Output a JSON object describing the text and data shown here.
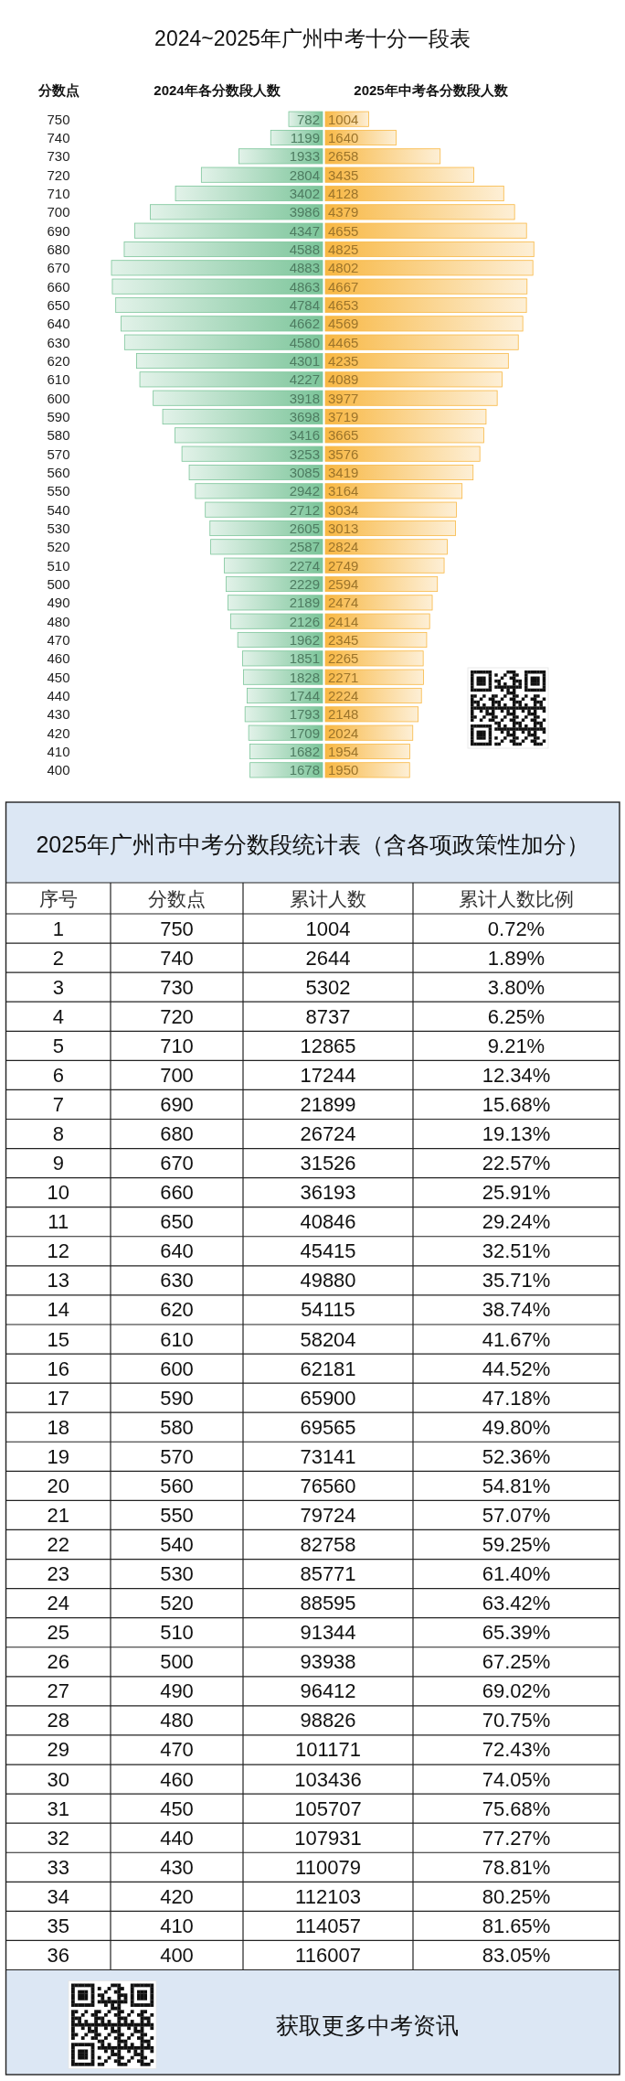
{
  "chart_data": [
    {
      "type": "bar",
      "orientation": "horizontal",
      "title": "2024~2025年广州中考十分一段表",
      "ylabel": "分数点",
      "data_labels": true,
      "categories": [
        "750",
        "740",
        "730",
        "720",
        "710",
        "700",
        "690",
        "680",
        "670",
        "660",
        "650",
        "640",
        "630",
        "620",
        "610",
        "600",
        "590",
        "580",
        "570",
        "560",
        "550",
        "540",
        "530",
        "520",
        "510",
        "500",
        "490",
        "480",
        "470",
        "460",
        "450",
        "440",
        "430",
        "420",
        "410",
        "400"
      ],
      "series": [
        {
          "name": "2024年各分数段人数",
          "color": "#7cc59a",
          "values": [
            782,
            1199,
            1933,
            2804,
            3402,
            3986,
            4347,
            4588,
            4883,
            4863,
            4784,
            4662,
            4580,
            4301,
            4227,
            3918,
            3698,
            3416,
            3253,
            3085,
            2942,
            2712,
            2605,
            2587,
            2274,
            2229,
            2189,
            2126,
            1962,
            1851,
            1828,
            1744,
            1793,
            1709,
            1682,
            1678
          ]
        }
      ]
    },
    {
      "type": "bar",
      "orientation": "horizontal",
      "data_labels": true,
      "categories": [
        null,
        null,
        null,
        null,
        null,
        null,
        null,
        null,
        null,
        null,
        null,
        null,
        null,
        null,
        null,
        null,
        null,
        null,
        null,
        null,
        null,
        null,
        null,
        null,
        null,
        null,
        null,
        null,
        null,
        null,
        null,
        null,
        null,
        null,
        null,
        null
      ],
      "series": [
        {
          "name": "2025年中考各分数段人数",
          "color": "#f8b844",
          "values": [
            1004,
            1640,
            2658,
            3435,
            4128,
            4379,
            4655,
            4825,
            4802,
            4667,
            4653,
            4569,
            4465,
            4235,
            4089,
            3977,
            3719,
            3665,
            3576,
            3419,
            3164,
            3034,
            3013,
            2824,
            2749,
            2594,
            2474,
            2414,
            2345,
            2265,
            2271,
            2224,
            2148,
            2024,
            1954,
            1950
          ]
        }
      ]
    },
    {
      "type": "heatmap",
      "title": "2025年广州市中考分数段统计表（含各项政策性加分）",
      "ylabel": "序号",
      "categories": [
        "分数点",
        "累计人数",
        "累计人数比例"
      ],
      "y_categories": [
        "1",
        "2",
        "3",
        "4",
        "5",
        "6",
        "7",
        "8",
        "9",
        "10",
        "11",
        "12",
        "13",
        "14",
        "15",
        "16",
        "17",
        "18",
        "19",
        "20",
        "21",
        "22",
        "23",
        "24",
        "25",
        "26",
        "27",
        "28",
        "29",
        "30",
        "31",
        "32",
        "33",
        "34",
        "35",
        "36"
      ],
      "cells": [
        [
          null,
          null,
          null
        ],
        [
          null,
          null,
          null
        ],
        [
          null,
          null,
          null
        ],
        [
          null,
          null,
          null
        ],
        [
          null,
          null,
          null
        ],
        [
          null,
          null,
          null
        ],
        [
          null,
          null,
          null
        ],
        [
          null,
          null,
          null
        ],
        [
          null,
          null,
          null
        ],
        [
          null,
          null,
          null
        ],
        [
          null,
          null,
          null
        ],
        [
          null,
          null,
          null
        ],
        [
          null,
          null,
          null
        ],
        [
          null,
          null,
          null
        ],
        [
          null,
          null,
          null
        ],
        [
          null,
          null,
          null
        ],
        [
          null,
          null,
          null
        ],
        [
          null,
          null,
          null
        ],
        [
          null,
          null,
          null
        ],
        [
          null,
          null,
          null
        ],
        [
          null,
          null,
          null
        ],
        [
          null,
          null,
          null
        ],
        [
          null,
          null,
          null
        ],
        [
          null,
          null,
          null
        ],
        [
          null,
          null,
          null
        ],
        [
          null,
          null,
          null
        ],
        [
          null,
          null,
          null
        ],
        [
          null,
          null,
          null
        ],
        [
          null,
          null,
          null
        ],
        [
          null,
          null,
          null
        ],
        [
          null,
          null,
          null
        ],
        [
          null,
          null,
          null
        ],
        [
          null,
          null,
          null
        ],
        [
          null,
          null,
          null
        ],
        [
          null,
          null,
          null
        ],
        [
          null,
          null,
          null
        ]
      ],
      "cell_labels": [
        [
          "750",
          "1004",
          "0.72%"
        ],
        [
          "740",
          "2644",
          "1.89%"
        ],
        [
          "730",
          "5302",
          "3.80%"
        ],
        [
          "720",
          "8737",
          "6.25%"
        ],
        [
          "710",
          "12865",
          "9.21%"
        ],
        [
          "700",
          "17244",
          "12.34%"
        ],
        [
          "690",
          "21899",
          "15.68%"
        ],
        [
          "680",
          "26724",
          "19.13%"
        ],
        [
          "670",
          "31526",
          "22.57%"
        ],
        [
          "660",
          "36193",
          "25.91%"
        ],
        [
          "650",
          "40846",
          "29.24%"
        ],
        [
          "640",
          "45415",
          "32.51%"
        ],
        [
          "630",
          "49880",
          "35.71%"
        ],
        [
          "620",
          "54115",
          "38.74%"
        ],
        [
          "610",
          "58204",
          "41.67%"
        ],
        [
          "600",
          "62181",
          "44.52%"
        ],
        [
          "590",
          "65900",
          "47.18%"
        ],
        [
          "580",
          "69565",
          "49.80%"
        ],
        [
          "570",
          "73141",
          "52.36%"
        ],
        [
          "560",
          "76560",
          "54.81%"
        ],
        [
          "550",
          "79724",
          "57.07%"
        ],
        [
          "540",
          "82758",
          "59.25%"
        ],
        [
          "530",
          "85771",
          "61.40%"
        ],
        [
          "520",
          "88595",
          "63.42%"
        ],
        [
          "510",
          "91344",
          "65.39%"
        ],
        [
          "500",
          "93938",
          "67.25%"
        ],
        [
          "490",
          "96412",
          "69.02%"
        ],
        [
          "480",
          "98826",
          "70.75%"
        ],
        [
          "470",
          "101171",
          "72.43%"
        ],
        [
          "460",
          "103436",
          "74.05%"
        ],
        [
          "450",
          "105707",
          "75.68%"
        ],
        [
          "440",
          "107931",
          "77.27%"
        ],
        [
          "430",
          "110079",
          "78.81%"
        ],
        [
          "420",
          "112103",
          "80.25%"
        ],
        [
          "410",
          "114057",
          "81.65%"
        ],
        [
          "400",
          "116007",
          "83.05%"
        ]
      ],
      "annotations": [
        "获取更多中考资讯"
      ]
    }
  ]
}
